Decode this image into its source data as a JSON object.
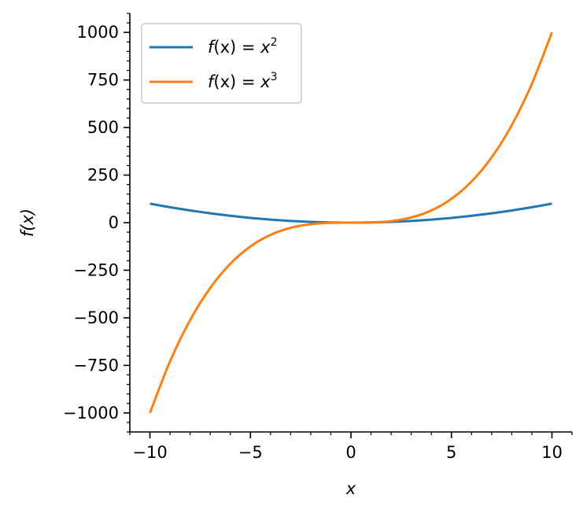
{
  "chart_data": {
    "type": "line",
    "title": "",
    "xlabel": "x",
    "ylabel": "f(x)",
    "xlim": [
      -11,
      11
    ],
    "ylim": [
      -1100,
      1100
    ],
    "xticks": [
      -10,
      -5,
      0,
      5,
      10
    ],
    "xtick_labels": [
      "−10",
      "−5",
      "0",
      "5",
      "10"
    ],
    "xminor_step": 1,
    "yticks": [
      -1000,
      -750,
      -500,
      -250,
      0,
      250,
      500,
      750,
      1000
    ],
    "ytick_labels": [
      "−1000",
      "−750",
      "−500",
      "−250",
      "0",
      "250",
      "500",
      "750",
      "1000"
    ],
    "yminor_step": 50,
    "grid": false,
    "spines": "left-bottom",
    "legend_position": "top-left",
    "series": [
      {
        "name": "f(x) = x²",
        "legend": {
          "prefix": "f",
          "arg": "(x) = ",
          "base": "x",
          "sup": "2"
        },
        "color": "#1f77b4",
        "x": [
          -10,
          -9,
          -8,
          -7,
          -6,
          -5,
          -4,
          -3,
          -2,
          -1,
          0,
          1,
          2,
          3,
          4,
          5,
          6,
          7,
          8,
          9,
          10
        ],
        "y": [
          100,
          81,
          64,
          49,
          36,
          25,
          16,
          9,
          4,
          1,
          0,
          1,
          4,
          9,
          16,
          25,
          36,
          49,
          64,
          81,
          100
        ]
      },
      {
        "name": "f(x) = x³",
        "legend": {
          "prefix": "f",
          "arg": "(x) = ",
          "base": "x",
          "sup": "3"
        },
        "color": "#ff7f0e",
        "x": [
          -10,
          -9,
          -8,
          -7,
          -6,
          -5,
          -4,
          -3,
          -2,
          -1,
          0,
          1,
          2,
          3,
          4,
          5,
          6,
          7,
          8,
          9,
          10
        ],
        "y": [
          -1000,
          -729,
          -512,
          -343,
          -216,
          -125,
          -64,
          -27,
          -8,
          -1,
          0,
          1,
          8,
          27,
          64,
          125,
          216,
          343,
          512,
          729,
          1000
        ]
      }
    ]
  }
}
